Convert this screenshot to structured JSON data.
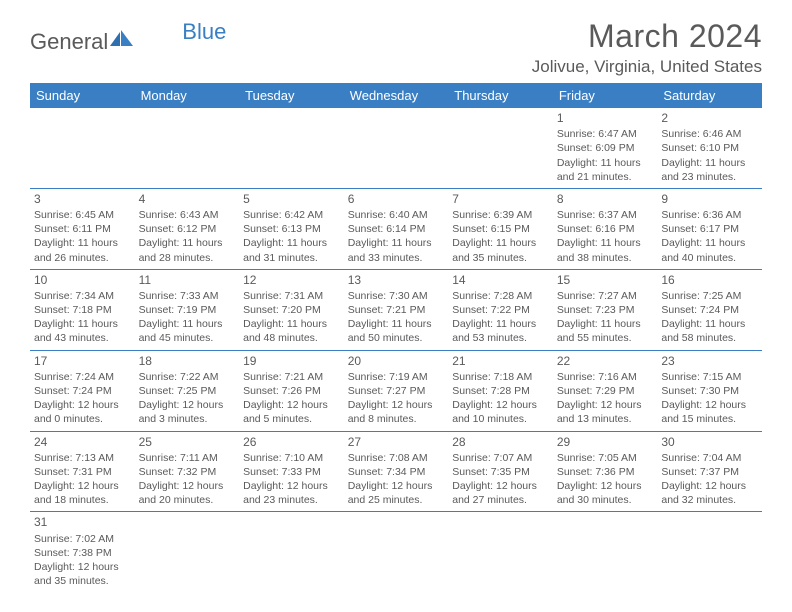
{
  "logo": {
    "general": "General",
    "blue": "Blue"
  },
  "title": "March 2024",
  "location": "Jolivue, Virginia, United States",
  "colors": {
    "header_bg": "#3a7fc4",
    "header_text": "#ffffff",
    "text": "#5a5a5a",
    "border": "#3a7fc4",
    "background": "#ffffff"
  },
  "weekdays": [
    "Sunday",
    "Monday",
    "Tuesday",
    "Wednesday",
    "Thursday",
    "Friday",
    "Saturday"
  ],
  "weeks": [
    [
      null,
      null,
      null,
      null,
      null,
      {
        "day": "1",
        "sunrise": "Sunrise: 6:47 AM",
        "sunset": "Sunset: 6:09 PM",
        "daylight": "Daylight: 11 hours and 21 minutes."
      },
      {
        "day": "2",
        "sunrise": "Sunrise: 6:46 AM",
        "sunset": "Sunset: 6:10 PM",
        "daylight": "Daylight: 11 hours and 23 minutes."
      }
    ],
    [
      {
        "day": "3",
        "sunrise": "Sunrise: 6:45 AM",
        "sunset": "Sunset: 6:11 PM",
        "daylight": "Daylight: 11 hours and 26 minutes."
      },
      {
        "day": "4",
        "sunrise": "Sunrise: 6:43 AM",
        "sunset": "Sunset: 6:12 PM",
        "daylight": "Daylight: 11 hours and 28 minutes."
      },
      {
        "day": "5",
        "sunrise": "Sunrise: 6:42 AM",
        "sunset": "Sunset: 6:13 PM",
        "daylight": "Daylight: 11 hours and 31 minutes."
      },
      {
        "day": "6",
        "sunrise": "Sunrise: 6:40 AM",
        "sunset": "Sunset: 6:14 PM",
        "daylight": "Daylight: 11 hours and 33 minutes."
      },
      {
        "day": "7",
        "sunrise": "Sunrise: 6:39 AM",
        "sunset": "Sunset: 6:15 PM",
        "daylight": "Daylight: 11 hours and 35 minutes."
      },
      {
        "day": "8",
        "sunrise": "Sunrise: 6:37 AM",
        "sunset": "Sunset: 6:16 PM",
        "daylight": "Daylight: 11 hours and 38 minutes."
      },
      {
        "day": "9",
        "sunrise": "Sunrise: 6:36 AM",
        "sunset": "Sunset: 6:17 PM",
        "daylight": "Daylight: 11 hours and 40 minutes."
      }
    ],
    [
      {
        "day": "10",
        "sunrise": "Sunrise: 7:34 AM",
        "sunset": "Sunset: 7:18 PM",
        "daylight": "Daylight: 11 hours and 43 minutes."
      },
      {
        "day": "11",
        "sunrise": "Sunrise: 7:33 AM",
        "sunset": "Sunset: 7:19 PM",
        "daylight": "Daylight: 11 hours and 45 minutes."
      },
      {
        "day": "12",
        "sunrise": "Sunrise: 7:31 AM",
        "sunset": "Sunset: 7:20 PM",
        "daylight": "Daylight: 11 hours and 48 minutes."
      },
      {
        "day": "13",
        "sunrise": "Sunrise: 7:30 AM",
        "sunset": "Sunset: 7:21 PM",
        "daylight": "Daylight: 11 hours and 50 minutes."
      },
      {
        "day": "14",
        "sunrise": "Sunrise: 7:28 AM",
        "sunset": "Sunset: 7:22 PM",
        "daylight": "Daylight: 11 hours and 53 minutes."
      },
      {
        "day": "15",
        "sunrise": "Sunrise: 7:27 AM",
        "sunset": "Sunset: 7:23 PM",
        "daylight": "Daylight: 11 hours and 55 minutes."
      },
      {
        "day": "16",
        "sunrise": "Sunrise: 7:25 AM",
        "sunset": "Sunset: 7:24 PM",
        "daylight": "Daylight: 11 hours and 58 minutes."
      }
    ],
    [
      {
        "day": "17",
        "sunrise": "Sunrise: 7:24 AM",
        "sunset": "Sunset: 7:24 PM",
        "daylight": "Daylight: 12 hours and 0 minutes."
      },
      {
        "day": "18",
        "sunrise": "Sunrise: 7:22 AM",
        "sunset": "Sunset: 7:25 PM",
        "daylight": "Daylight: 12 hours and 3 minutes."
      },
      {
        "day": "19",
        "sunrise": "Sunrise: 7:21 AM",
        "sunset": "Sunset: 7:26 PM",
        "daylight": "Daylight: 12 hours and 5 minutes."
      },
      {
        "day": "20",
        "sunrise": "Sunrise: 7:19 AM",
        "sunset": "Sunset: 7:27 PM",
        "daylight": "Daylight: 12 hours and 8 minutes."
      },
      {
        "day": "21",
        "sunrise": "Sunrise: 7:18 AM",
        "sunset": "Sunset: 7:28 PM",
        "daylight": "Daylight: 12 hours and 10 minutes."
      },
      {
        "day": "22",
        "sunrise": "Sunrise: 7:16 AM",
        "sunset": "Sunset: 7:29 PM",
        "daylight": "Daylight: 12 hours and 13 minutes."
      },
      {
        "day": "23",
        "sunrise": "Sunrise: 7:15 AM",
        "sunset": "Sunset: 7:30 PM",
        "daylight": "Daylight: 12 hours and 15 minutes."
      }
    ],
    [
      {
        "day": "24",
        "sunrise": "Sunrise: 7:13 AM",
        "sunset": "Sunset: 7:31 PM",
        "daylight": "Daylight: 12 hours and 18 minutes."
      },
      {
        "day": "25",
        "sunrise": "Sunrise: 7:11 AM",
        "sunset": "Sunset: 7:32 PM",
        "daylight": "Daylight: 12 hours and 20 minutes."
      },
      {
        "day": "26",
        "sunrise": "Sunrise: 7:10 AM",
        "sunset": "Sunset: 7:33 PM",
        "daylight": "Daylight: 12 hours and 23 minutes."
      },
      {
        "day": "27",
        "sunrise": "Sunrise: 7:08 AM",
        "sunset": "Sunset: 7:34 PM",
        "daylight": "Daylight: 12 hours and 25 minutes."
      },
      {
        "day": "28",
        "sunrise": "Sunrise: 7:07 AM",
        "sunset": "Sunset: 7:35 PM",
        "daylight": "Daylight: 12 hours and 27 minutes."
      },
      {
        "day": "29",
        "sunrise": "Sunrise: 7:05 AM",
        "sunset": "Sunset: 7:36 PM",
        "daylight": "Daylight: 12 hours and 30 minutes."
      },
      {
        "day": "30",
        "sunrise": "Sunrise: 7:04 AM",
        "sunset": "Sunset: 7:37 PM",
        "daylight": "Daylight: 12 hours and 32 minutes."
      }
    ],
    [
      {
        "day": "31",
        "sunrise": "Sunrise: 7:02 AM",
        "sunset": "Sunset: 7:38 PM",
        "daylight": "Daylight: 12 hours and 35 minutes."
      },
      null,
      null,
      null,
      null,
      null,
      null
    ]
  ]
}
